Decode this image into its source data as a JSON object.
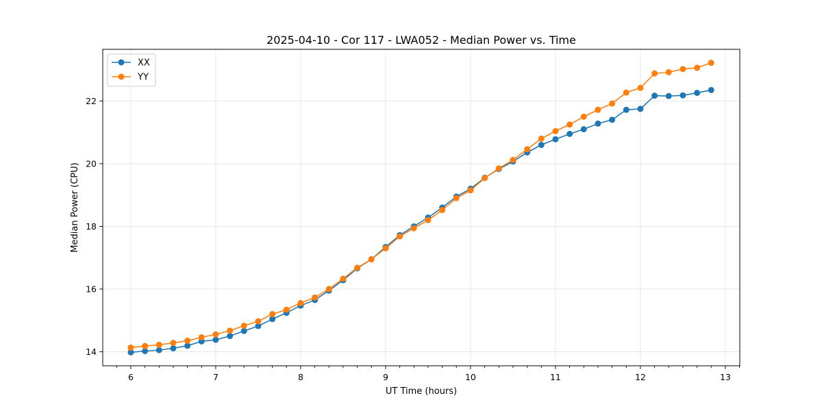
{
  "chart_data": {
    "type": "line",
    "title": "2025-04-10 - Cor 117 - LWA052 - Median Power vs. Time",
    "xlabel": "UT Time (hours)",
    "ylabel": "Median Power (CPU)",
    "xlim": [
      5.67,
      13.17
    ],
    "ylim": [
      13.55,
      23.65
    ],
    "xticks": [
      6,
      7,
      8,
      9,
      10,
      11,
      12,
      13
    ],
    "yticks": [
      14,
      16,
      18,
      20,
      22
    ],
    "grid": true,
    "legend_position": "top-left",
    "x": [
      6.0,
      6.167,
      6.333,
      6.5,
      6.667,
      6.833,
      7.0,
      7.167,
      7.333,
      7.5,
      7.667,
      7.833,
      8.0,
      8.167,
      8.333,
      8.5,
      8.667,
      8.833,
      9.0,
      9.167,
      9.333,
      9.5,
      9.667,
      9.833,
      10.0,
      10.167,
      10.333,
      10.5,
      10.667,
      10.833,
      11.0,
      11.167,
      11.333,
      11.5,
      11.667,
      11.833,
      12.0,
      12.167,
      12.333,
      12.5,
      12.667,
      12.833
    ],
    "series": [
      {
        "name": "XX",
        "color": "#1f77b4",
        "values": [
          13.98,
          14.02,
          14.05,
          14.11,
          14.19,
          14.33,
          14.38,
          14.5,
          14.66,
          14.82,
          15.04,
          15.24,
          15.47,
          15.65,
          15.95,
          16.28,
          16.66,
          16.95,
          17.34,
          17.72,
          18.0,
          18.28,
          18.6,
          18.95,
          19.2,
          19.55,
          19.83,
          20.07,
          20.36,
          20.6,
          20.78,
          20.95,
          21.1,
          21.28,
          21.4,
          21.72,
          21.75,
          22.17,
          22.16,
          22.18,
          22.26,
          22.35
        ]
      },
      {
        "name": "YY",
        "color": "#ff7f0e",
        "values": [
          14.13,
          14.18,
          14.22,
          14.28,
          14.35,
          14.46,
          14.55,
          14.67,
          14.83,
          14.97,
          15.2,
          15.34,
          15.55,
          15.73,
          16.0,
          16.33,
          16.68,
          16.95,
          17.3,
          17.68,
          17.94,
          18.2,
          18.52,
          18.9,
          19.15,
          19.54,
          19.85,
          20.12,
          20.46,
          20.8,
          21.04,
          21.25,
          21.5,
          21.72,
          21.92,
          22.27,
          22.42,
          22.88,
          22.92,
          23.02,
          23.06,
          23.22
        ]
      }
    ]
  }
}
